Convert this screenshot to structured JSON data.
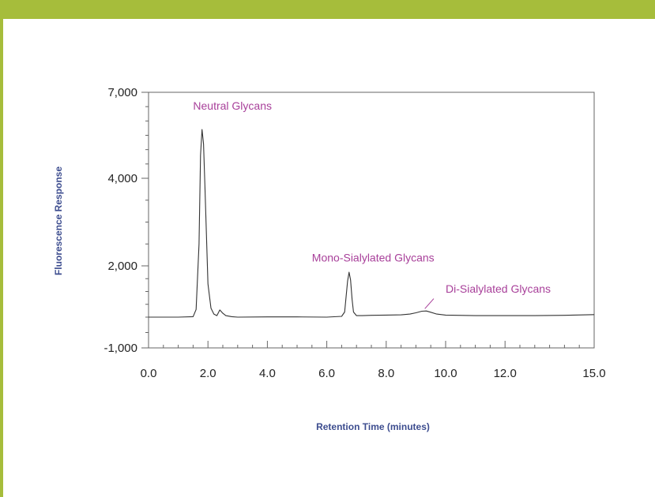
{
  "colors": {
    "banner": "#a6bd3b",
    "annotation": "#a8409a",
    "axis_title": "#3d4d8f",
    "line": "#333333",
    "axis": "#666666"
  },
  "chart_data": {
    "type": "line",
    "xlabel": "Retention Time (minutes)",
    "ylabel": "Fluorescence Response",
    "xlim": [
      0,
      15
    ],
    "ylim": [
      -1000,
      7000
    ],
    "x_tick_values": [
      0,
      2,
      4,
      6,
      8,
      10,
      12,
      15
    ],
    "x_tick_labels": [
      "0.0",
      "2.0",
      "4.0",
      "6.0",
      "8.0",
      "10.0",
      "12.0",
      "15.0"
    ],
    "y_tick_values": [
      7000,
      4000,
      2000,
      -1000
    ],
    "y_tick_labels": [
      "7,000",
      "4,000",
      "2,000",
      "-1,000"
    ],
    "grid": false,
    "series": [
      {
        "x": [
          0,
          0.5,
          1.0,
          1.5,
          1.6,
          1.7,
          1.75,
          1.8,
          1.85,
          1.9,
          2.0,
          2.1,
          2.2,
          2.3,
          2.4,
          2.5,
          2.6,
          2.8,
          3.0,
          4.0,
          5.0,
          6.0,
          6.5,
          6.6,
          6.7,
          6.75,
          6.8,
          6.85,
          6.9,
          7.0,
          7.2,
          7.5,
          8.0,
          8.5,
          8.8,
          9.0,
          9.2,
          9.35,
          9.5,
          9.7,
          10.0,
          11.0,
          12.0,
          13.0,
          14.0,
          15.0
        ],
        "y": [
          0,
          0,
          0,
          20,
          300,
          2500,
          4800,
          5700,
          5200,
          3800,
          1300,
          350,
          120,
          60,
          280,
          150,
          60,
          20,
          0,
          10,
          10,
          0,
          30,
          200,
          1400,
          1750,
          1450,
          700,
          200,
          60,
          60,
          70,
          80,
          90,
          120,
          170,
          230,
          240,
          190,
          120,
          80,
          60,
          60,
          60,
          70,
          100
        ]
      }
    ],
    "annotations": [
      {
        "text": "Neutral Glycans",
        "x": 1.5,
        "y": 6400
      },
      {
        "text": "Mono-Sialylated Glycans",
        "x": 5.5,
        "y": 2100
      },
      {
        "text": "Di-Sialylated Glycans",
        "x": 10.0,
        "y": 950
      }
    ]
  }
}
